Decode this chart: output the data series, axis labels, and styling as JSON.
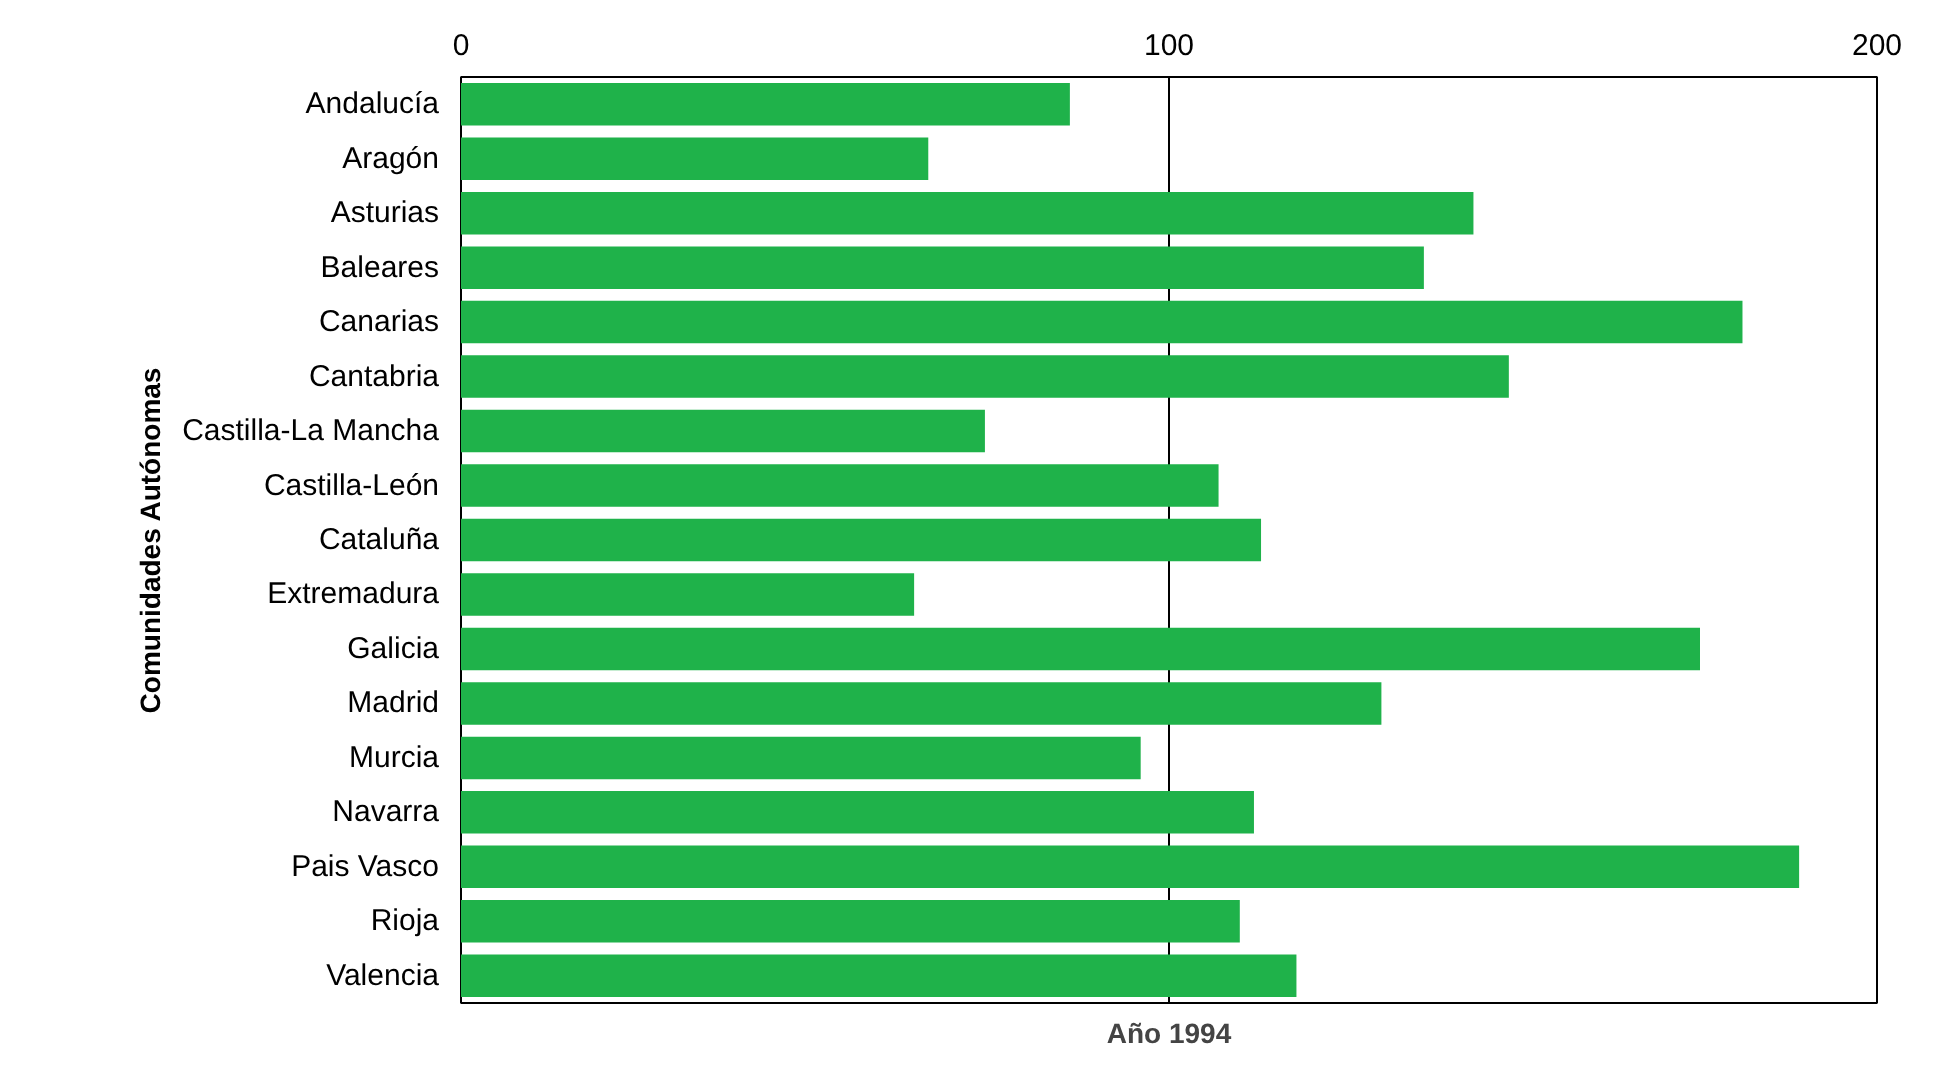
{
  "chart_data": {
    "type": "bar",
    "orientation": "horizontal",
    "xlabel": "Año 1994",
    "ylabel": "Comunidades Autónomas",
    "categories": [
      "Andalucía",
      "Aragón",
      "Asturias",
      "Baleares",
      "Canarias",
      "Cantabria",
      "Castilla-La Mancha",
      "Castilla-León",
      "Cataluña",
      "Extremadura",
      "Galicia",
      "Madrid",
      "Murcia",
      "Navarra",
      "Pais Vasco",
      "Rioja",
      "Valencia"
    ],
    "values": [
      86,
      66,
      143,
      136,
      181,
      148,
      74,
      107,
      113,
      64,
      175,
      130,
      96,
      112,
      189,
      110,
      118
    ],
    "color": "#1fb24a",
    "xlim": [
      0,
      200
    ],
    "xticks": [
      0,
      100,
      200
    ],
    "grid": "x"
  }
}
